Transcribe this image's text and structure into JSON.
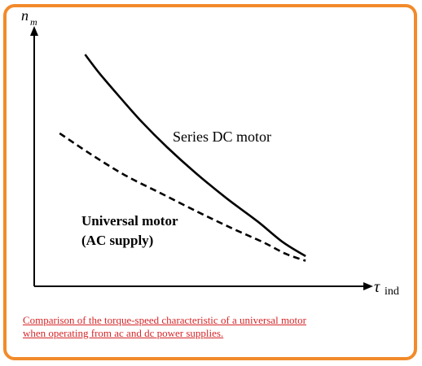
{
  "chart_data": {
    "type": "line",
    "title": "",
    "xlabel": "τind",
    "ylabel": "nm",
    "axis_labels": {
      "y_main": "n",
      "y_sub": "m",
      "x_main": "τ",
      "x_sub": "ind"
    },
    "xlim": [
      0,
      100
    ],
    "ylim": [
      0,
      100
    ],
    "grid": false,
    "series": [
      {
        "name": "Series DC motor",
        "style": "solid",
        "x": [
          18,
          23,
          30,
          38,
          47,
          57,
          68,
          79,
          88,
          96
        ],
        "y": [
          100,
          92,
          82,
          71,
          60,
          49,
          38,
          28,
          19,
          13
        ]
      },
      {
        "name": "Universal motor\n(AC supply)",
        "style": "dashed",
        "x": [
          9,
          20,
          32,
          45,
          58,
          70,
          81,
          89,
          96
        ],
        "y": [
          66,
          57,
          48,
          40,
          32,
          25,
          19,
          14,
          11
        ]
      }
    ],
    "annotations": [
      {
        "text": "Series DC motor",
        "target": "series-0"
      },
      {
        "text": "Universal motor",
        "target": "series-1"
      },
      {
        "text": "(AC supply)",
        "target": "series-1"
      }
    ]
  },
  "caption": {
    "line1": "Comparison of the torque-speed characteristic of a universal motor",
    "line2": "when operating from ac and dc power supplies."
  },
  "colors": {
    "frame": "#f28a2a",
    "caption": "#d6272a",
    "line": "#000000"
  }
}
